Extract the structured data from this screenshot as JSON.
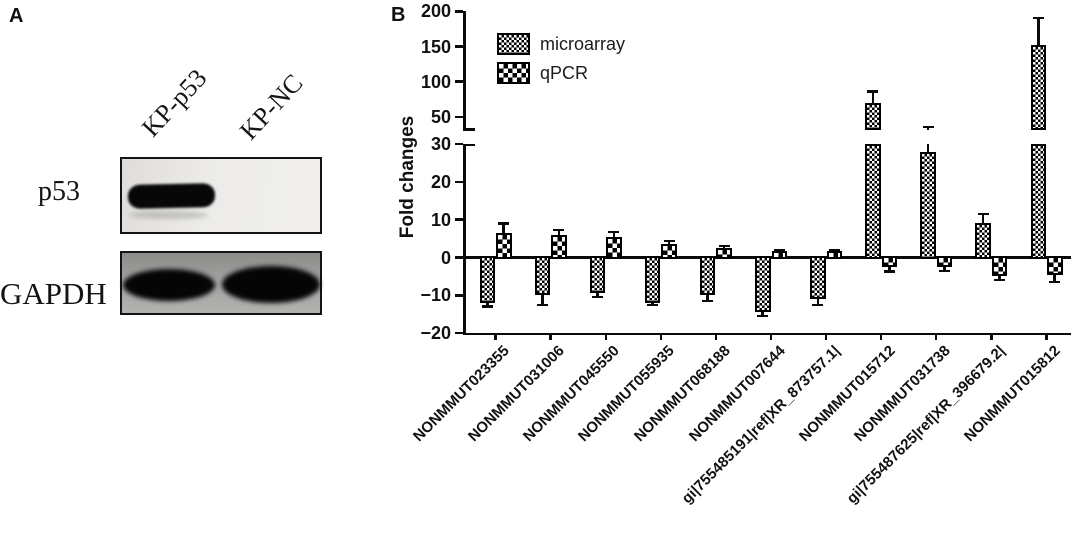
{
  "panel_a": {
    "label": "A",
    "lane_labels": [
      "KP-p53",
      "KP-NC"
    ],
    "row_labels": [
      "p53",
      "GAPDH"
    ]
  },
  "panel_b": {
    "label": "B"
  },
  "chart_data": {
    "type": "bar",
    "title": "",
    "xlabel": "",
    "ylabel": "Fold changes",
    "grid": false,
    "legend_position": "top-left-inside",
    "axis_break": true,
    "lower_axis": {
      "range": [
        -20,
        30
      ],
      "ticks": [
        30,
        20,
        10,
        0,
        -10,
        -20
      ]
    },
    "upper_axis": {
      "range": [
        50,
        200
      ],
      "ticks": [
        200,
        150,
        100,
        50
      ]
    },
    "categories": [
      "NONMMUT023355",
      "NONMMUT031006",
      "NONMMUT045550",
      "NONMMUT055935",
      "NONMMUT068188",
      "NONMMUT007644",
      "gi|755485191|ref|XR_873757.1|",
      "NONMMUT015712",
      "NONMMUT031738",
      "gi|755487625|ref|XR_396679.2|",
      "NONMMUT015812"
    ],
    "series": [
      {
        "name": "microarray",
        "pattern": "fine-checkerboard",
        "color": "#000000",
        "values": [
          -12,
          -10,
          -9.5,
          -12,
          -10,
          -14.5,
          -11,
          70,
          28,
          9,
          152
        ],
        "errors": [
          1,
          2.5,
          1,
          0.5,
          1.5,
          1,
          1.5,
          16,
          8,
          2.5,
          38
        ]
      },
      {
        "name": "qPCR",
        "pattern": "coarse-checkerboard",
        "color": "#000000",
        "values": [
          6.5,
          6,
          5.5,
          3.5,
          2.5,
          1.6,
          1.6,
          -2.6,
          -2.4,
          -5,
          -4.5
        ],
        "errors": [
          2.5,
          1.2,
          1.3,
          0.8,
          0.5,
          0.4,
          0.4,
          1.1,
          1.1,
          1,
          2
        ]
      }
    ]
  }
}
